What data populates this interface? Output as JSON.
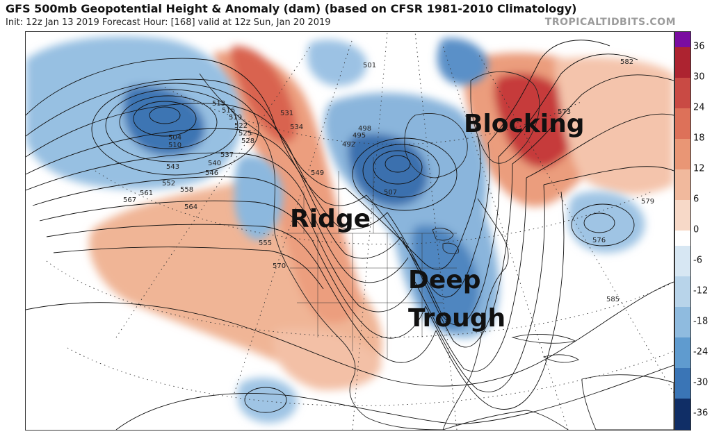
{
  "header": {
    "title": "GFS 500mb Geopotential Height & Anomaly (dam) (based on CFSR 1981-2010 Climatology)",
    "subtitle": "Init: 12z Jan 13 2019   Forecast Hour: [168]   valid at 12z Sun, Jan 20 2019",
    "watermark": "TROPICALTIDBITS.COM"
  },
  "annotations": {
    "blocking": "Blocking",
    "ridge": "Ridge",
    "deep": "Deep",
    "trough": "Trough"
  },
  "contour_labels": [
    "504",
    "510",
    "513",
    "516",
    "519",
    "522",
    "525",
    "528",
    "531",
    "534",
    "537",
    "540",
    "543",
    "546",
    "549",
    "552",
    "555",
    "558",
    "561",
    "564",
    "567",
    "570",
    "573",
    "576",
    "579",
    "582",
    "585",
    "492",
    "495",
    "498",
    "501",
    "507"
  ],
  "colorbar": {
    "ticks": [
      "36",
      "30",
      "24",
      "18",
      "12",
      "6",
      "0",
      "-6",
      "-12",
      "-18",
      "-24",
      "-30",
      "-36"
    ],
    "colors": {
      "pos_max": "#7a0ca0",
      "pos": [
        "#f7d9c8",
        "#f1b99d",
        "#e99675",
        "#dd7159",
        "#c94a44",
        "#ad2330"
      ],
      "neg": [
        "#d7e7f3",
        "#b8d4ea",
        "#8fbbdf",
        "#5f9bcf",
        "#3a75b6",
        "#1e4f95",
        "#102e66"
      ],
      "zero": "#ffffff"
    }
  },
  "colors": {
    "warm_anomaly": "#ee9d7b",
    "strong_warm": "#c94040",
    "cold_anomaly": "#92bde0",
    "strong_cold": "#2f6ead"
  }
}
